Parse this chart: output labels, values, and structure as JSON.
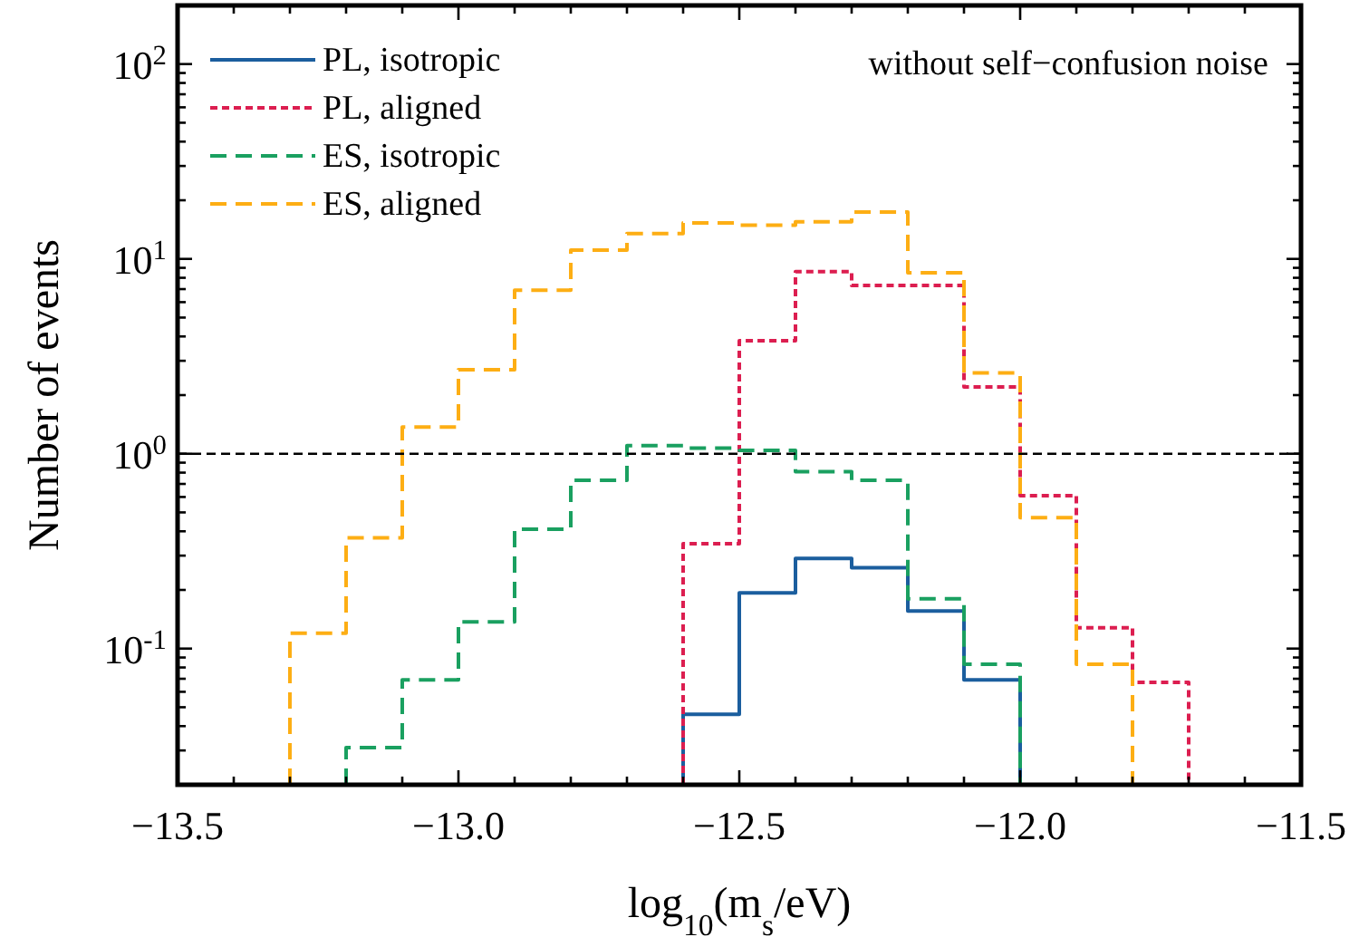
{
  "chart_data": {
    "type": "step",
    "xlabel": "log$_{10}$(m$_{s}$/eV)",
    "ylabel": "Number of events",
    "annotations": [
      "without self−confusion noise"
    ],
    "series": [
      {
        "name": "PL, isotropic",
        "color": "#1b5e9e",
        "line_style": "solid",
        "x": [
          -12.6,
          -12.6,
          -12.5,
          -12.4,
          -12.3,
          -12.2,
          -12.1,
          -12.0
        ],
        "values": [
          0.02,
          0.046,
          0.193,
          0.29,
          0.26,
          0.156,
          0.069,
          0.02
        ]
      },
      {
        "name": "PL, aligned",
        "color": "#dc1e50",
        "line_style": "dotted",
        "x": [
          -12.6,
          -12.6,
          -12.5,
          -12.4,
          -12.3,
          -12.2,
          -12.1,
          -12.0,
          -11.9,
          -11.8,
          -11.7
        ],
        "values": [
          0.02,
          0.345,
          3.8,
          8.6,
          7.3,
          7.3,
          2.2,
          0.61,
          0.128,
          0.067,
          0.02
        ]
      },
      {
        "name": "ES, isotropic",
        "color": "#1aa060",
        "line_style": "dashed",
        "x": [
          -13.2,
          -13.2,
          -13.1,
          -13.0,
          -12.9,
          -12.8,
          -12.7,
          -12.6,
          -12.5,
          -12.4,
          -12.3,
          -12.2,
          -12.1,
          -12.0
        ],
        "values": [
          0.02,
          0.031,
          0.069,
          0.137,
          0.41,
          0.73,
          1.1,
          1.07,
          1.04,
          0.81,
          0.73,
          0.18,
          0.083,
          0.02
        ]
      },
      {
        "name": "ES, aligned",
        "color": "#fdae14",
        "line_style": "dashed",
        "x": [
          -13.3,
          -13.3,
          -13.2,
          -13.1,
          -13.0,
          -12.9,
          -12.8,
          -12.7,
          -12.6,
          -12.5,
          -12.4,
          -12.3,
          -12.2,
          -12.1,
          -12.0,
          -11.9,
          -11.8
        ],
        "values": [
          0.02,
          0.12,
          0.37,
          1.37,
          2.7,
          6.9,
          11.1,
          13.5,
          15.3,
          14.9,
          15.5,
          17.4,
          8.5,
          2.6,
          0.47,
          0.083,
          0.02
        ]
      }
    ],
    "log": true,
    "xlim": [
      -13.5,
      -11.5
    ],
    "ylim": [
      0.02,
      200
    ],
    "xticks": [
      {
        "value": -13.5,
        "label": "−13.5"
      },
      {
        "value": -13.4,
        "label": null
      },
      {
        "value": -13.3,
        "label": null
      },
      {
        "value": -13.2,
        "label": null
      },
      {
        "value": -13.1,
        "label": null
      },
      {
        "value": -13.0,
        "label": "−13.0"
      },
      {
        "value": -12.9,
        "label": null
      },
      {
        "value": -12.8,
        "label": null
      },
      {
        "value": -12.7,
        "label": null
      },
      {
        "value": -12.6,
        "label": null
      },
      {
        "value": -12.5,
        "label": "−12.5"
      },
      {
        "value": -12.4,
        "label": null
      },
      {
        "value": -12.3,
        "label": null
      },
      {
        "value": -12.2,
        "label": null
      },
      {
        "value": -12.1,
        "label": null
      },
      {
        "value": -12.0,
        "label": "−12.0"
      },
      {
        "value": -11.9,
        "label": null
      },
      {
        "value": -11.8,
        "label": null
      },
      {
        "value": -11.7,
        "label": null
      },
      {
        "value": -11.6,
        "label": null
      },
      {
        "value": -11.5,
        "label": "−11.5"
      }
    ],
    "yticks": [
      {
        "value": 0.02,
        "label": null
      },
      {
        "value": 0.03,
        "label": null
      },
      {
        "value": 0.04,
        "label": null
      },
      {
        "value": 0.05,
        "label": null
      },
      {
        "value": 0.06,
        "label": null
      },
      {
        "value": 0.07,
        "label": null
      },
      {
        "value": 0.08,
        "label": null
      },
      {
        "value": 0.09,
        "label": null
      },
      {
        "value": 0.1,
        "label": "10$^{-1}$"
      },
      {
        "value": 0.2,
        "label": null
      },
      {
        "value": 0.3,
        "label": null
      },
      {
        "value": 0.4,
        "label": null
      },
      {
        "value": 0.5,
        "label": null
      },
      {
        "value": 0.6,
        "label": null
      },
      {
        "value": 0.7,
        "label": null
      },
      {
        "value": 0.8,
        "label": null
      },
      {
        "value": 0.9,
        "label": null
      },
      {
        "value": 1,
        "label": "10$^{0}$"
      },
      {
        "value": 2,
        "label": null
      },
      {
        "value": 3,
        "label": null
      },
      {
        "value": 4,
        "label": null
      },
      {
        "value": 5,
        "label": null
      },
      {
        "value": 6,
        "label": null
      },
      {
        "value": 7,
        "label": null
      },
      {
        "value": 8,
        "label": null
      },
      {
        "value": 9,
        "label": null
      },
      {
        "value": 10,
        "label": "10$^{1}$"
      },
      {
        "value": 20,
        "label": null
      },
      {
        "value": 30,
        "label": null
      },
      {
        "value": 40,
        "label": null
      },
      {
        "value": 50,
        "label": null
      },
      {
        "value": 60,
        "label": null
      },
      {
        "value": 70,
        "label": null
      },
      {
        "value": 80,
        "label": null
      },
      {
        "value": 90,
        "label": null
      },
      {
        "value": 100,
        "label": "10$^{2}$"
      },
      {
        "value": 200,
        "label": null
      }
    ],
    "ref_lines": [
      {
        "axis": "y",
        "value": 1,
        "color": "#000000",
        "line_style": "dashed"
      }
    ],
    "legend": "top left",
    "grid": false
  }
}
